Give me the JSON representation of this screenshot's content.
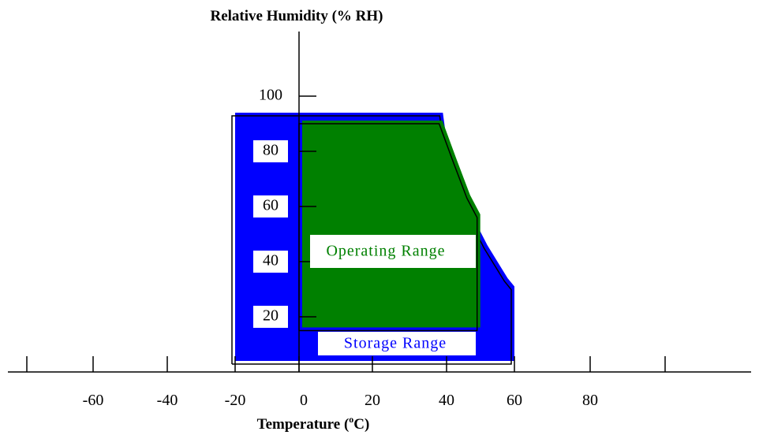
{
  "chart_data": {
    "type": "area",
    "title": "",
    "ylabel": "Relative Humidity (% RH)",
    "xlabel_prefix": "Temperature (",
    "xlabel_sup": "o",
    "xlabel_suffix": "C)",
    "x_ticks": [
      {
        "value": -80,
        "label": ""
      },
      {
        "value": -60,
        "label": "-60"
      },
      {
        "value": -40,
        "label": "-40"
      },
      {
        "value": -20,
        "label": "-20"
      },
      {
        "value": 0,
        "label": "0"
      },
      {
        "value": 20,
        "label": "20"
      },
      {
        "value": 40,
        "label": "40"
      },
      {
        "value": 60,
        "label": "60"
      },
      {
        "value": 80,
        "label": "80"
      },
      {
        "value": 100,
        "label": ""
      }
    ],
    "y_ticks": [
      {
        "value": 20,
        "label": "20"
      },
      {
        "value": 40,
        "label": "40"
      },
      {
        "value": 60,
        "label": "60"
      },
      {
        "value": 80,
        "label": "80"
      },
      {
        "value": 100,
        "label": "100"
      }
    ],
    "xlim": [
      -100,
      140
    ],
    "ylim": [
      0,
      140
    ],
    "series": [
      {
        "name": "Storage Range",
        "color": "#0000ff",
        "polygon": [
          [
            -20,
            0
          ],
          [
            60,
            0
          ],
          [
            60,
            27
          ],
          [
            58,
            30
          ],
          [
            52,
            42
          ],
          [
            47,
            54
          ],
          [
            44,
            63
          ],
          [
            40,
            80
          ],
          [
            39,
            90
          ],
          [
            -20,
            90
          ]
        ]
      },
      {
        "name": "Operating Range",
        "color": "#008000",
        "polygon": [
          [
            0,
            15
          ],
          [
            49,
            15
          ],
          [
            49,
            56
          ],
          [
            46,
            63
          ],
          [
            42,
            76
          ],
          [
            38,
            90
          ],
          [
            0,
            90
          ]
        ]
      }
    ],
    "annotations": {
      "operating_label": "Operating Range",
      "storage_label": "Storage Range"
    },
    "grid": false,
    "legend": "none"
  }
}
